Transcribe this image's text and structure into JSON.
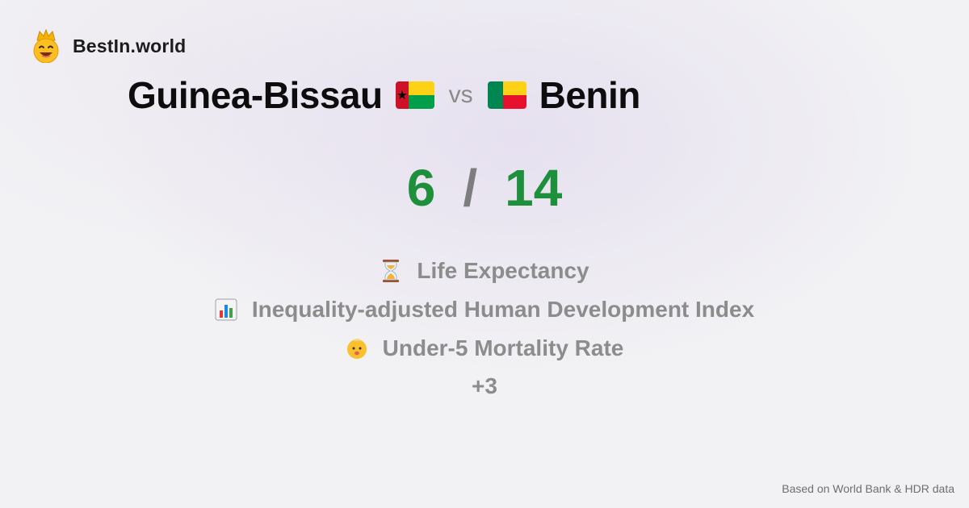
{
  "brand": {
    "name": "BestIn.world",
    "logo_icon": "crown-smiley-icon"
  },
  "comparison": {
    "country_a": {
      "name": "Guinea-Bissau",
      "flag_icon": "guinea-bissau-flag-icon"
    },
    "vs_label": "vs",
    "country_b": {
      "name": "Benin",
      "flag_icon": "benin-flag-icon"
    }
  },
  "score": {
    "a": "6",
    "separator": "/",
    "b": "14"
  },
  "metrics": [
    {
      "icon": "hourglass-icon",
      "label": "Life Expectancy"
    },
    {
      "icon": "bar-chart-icon",
      "label": "Inequality-adjusted Human Development Index"
    },
    {
      "icon": "baby-icon",
      "label": "Under-5 Mortality Rate"
    }
  ],
  "more_label": "+3",
  "footer": {
    "source": "Based on World Bank & HDR data"
  },
  "colors": {
    "score": "#1e8f3b",
    "muted": "#8c8c8c",
    "title": "#0d0d0d"
  }
}
